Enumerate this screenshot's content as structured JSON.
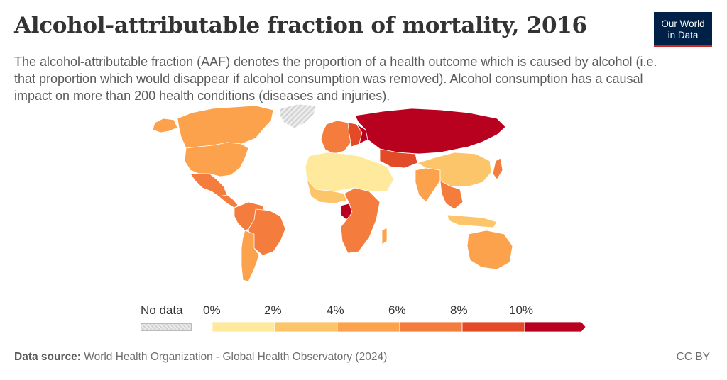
{
  "header": {
    "title": "Alcohol-attributable fraction of mortality, 2016",
    "subtitle": "The alcohol-attributable fraction (AAF) denotes the proportion of a health outcome which is caused by alcohol (i.e. that proportion which would disappear if alcohol consumption was removed). Alcohol consumption has a causal impact on more than 200 health conditions (diseases and injuries)."
  },
  "logo": {
    "line1": "Our World",
    "line2": "in Data"
  },
  "legend": {
    "no_data_label": "No data",
    "ticks": [
      "0%",
      "2%",
      "4%",
      "6%",
      "8%",
      "10%"
    ],
    "bins": [
      {
        "from": 0,
        "to": 2,
        "color": "#fee99d"
      },
      {
        "from": 2,
        "to": 4,
        "color": "#fdc569"
      },
      {
        "from": 4,
        "to": 6,
        "color": "#fca24c"
      },
      {
        "from": 6,
        "to": 8,
        "color": "#f47c3c"
      },
      {
        "from": 8,
        "to": 10,
        "color": "#e34a28"
      },
      {
        "from": 10,
        "to": null,
        "color": "#b8001f"
      }
    ]
  },
  "chart_data": {
    "type": "choropleth",
    "unit": "%",
    "legend_ticks": [
      0,
      2,
      4,
      6,
      8,
      10
    ],
    "regions": [
      {
        "name": "Russia",
        "bin": 5
      },
      {
        "name": "Belarus",
        "bin": 5
      },
      {
        "name": "Ukraine",
        "bin": 5
      },
      {
        "name": "Kazakhstan",
        "bin": 4
      },
      {
        "name": "Congo",
        "bin": 5
      },
      {
        "name": "Canada",
        "bin": 2
      },
      {
        "name": "United States",
        "bin": 2
      },
      {
        "name": "Mexico",
        "bin": 3
      },
      {
        "name": "Brazil",
        "bin": 3
      },
      {
        "name": "South America (other)",
        "bin": 3
      },
      {
        "name": "Western Europe",
        "bin": 3
      },
      {
        "name": "North Africa & Middle East",
        "bin": 0
      },
      {
        "name": "Sahel & Horn of Africa",
        "bin": 0
      },
      {
        "name": "West Africa",
        "bin": 1
      },
      {
        "name": "Central & Southern Africa",
        "bin": 3
      },
      {
        "name": "China",
        "bin": 1
      },
      {
        "name": "India",
        "bin": 2
      },
      {
        "name": "Southeast Asia",
        "bin": 3
      },
      {
        "name": "Indonesia",
        "bin": 1
      },
      {
        "name": "Australia",
        "bin": 2
      },
      {
        "name": "Greenland",
        "bin": null
      }
    ]
  },
  "footer": {
    "source_label": "Data source:",
    "source_text": "World Health Organization - Global Health Observatory (2024)",
    "license": "CC BY"
  }
}
